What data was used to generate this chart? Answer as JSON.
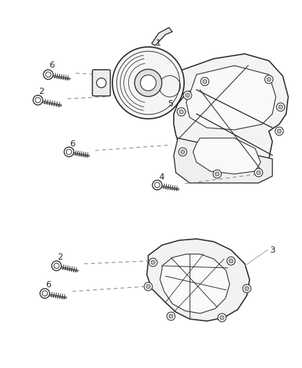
{
  "bg_color": "#ffffff",
  "line_color": "#2a2a2a",
  "label_color": "#2a2a2a",
  "dashed_color": "#888888",
  "solid_leader_color": "#999999",
  "fig_width": 4.38,
  "fig_height": 5.33,
  "dpi": 100
}
